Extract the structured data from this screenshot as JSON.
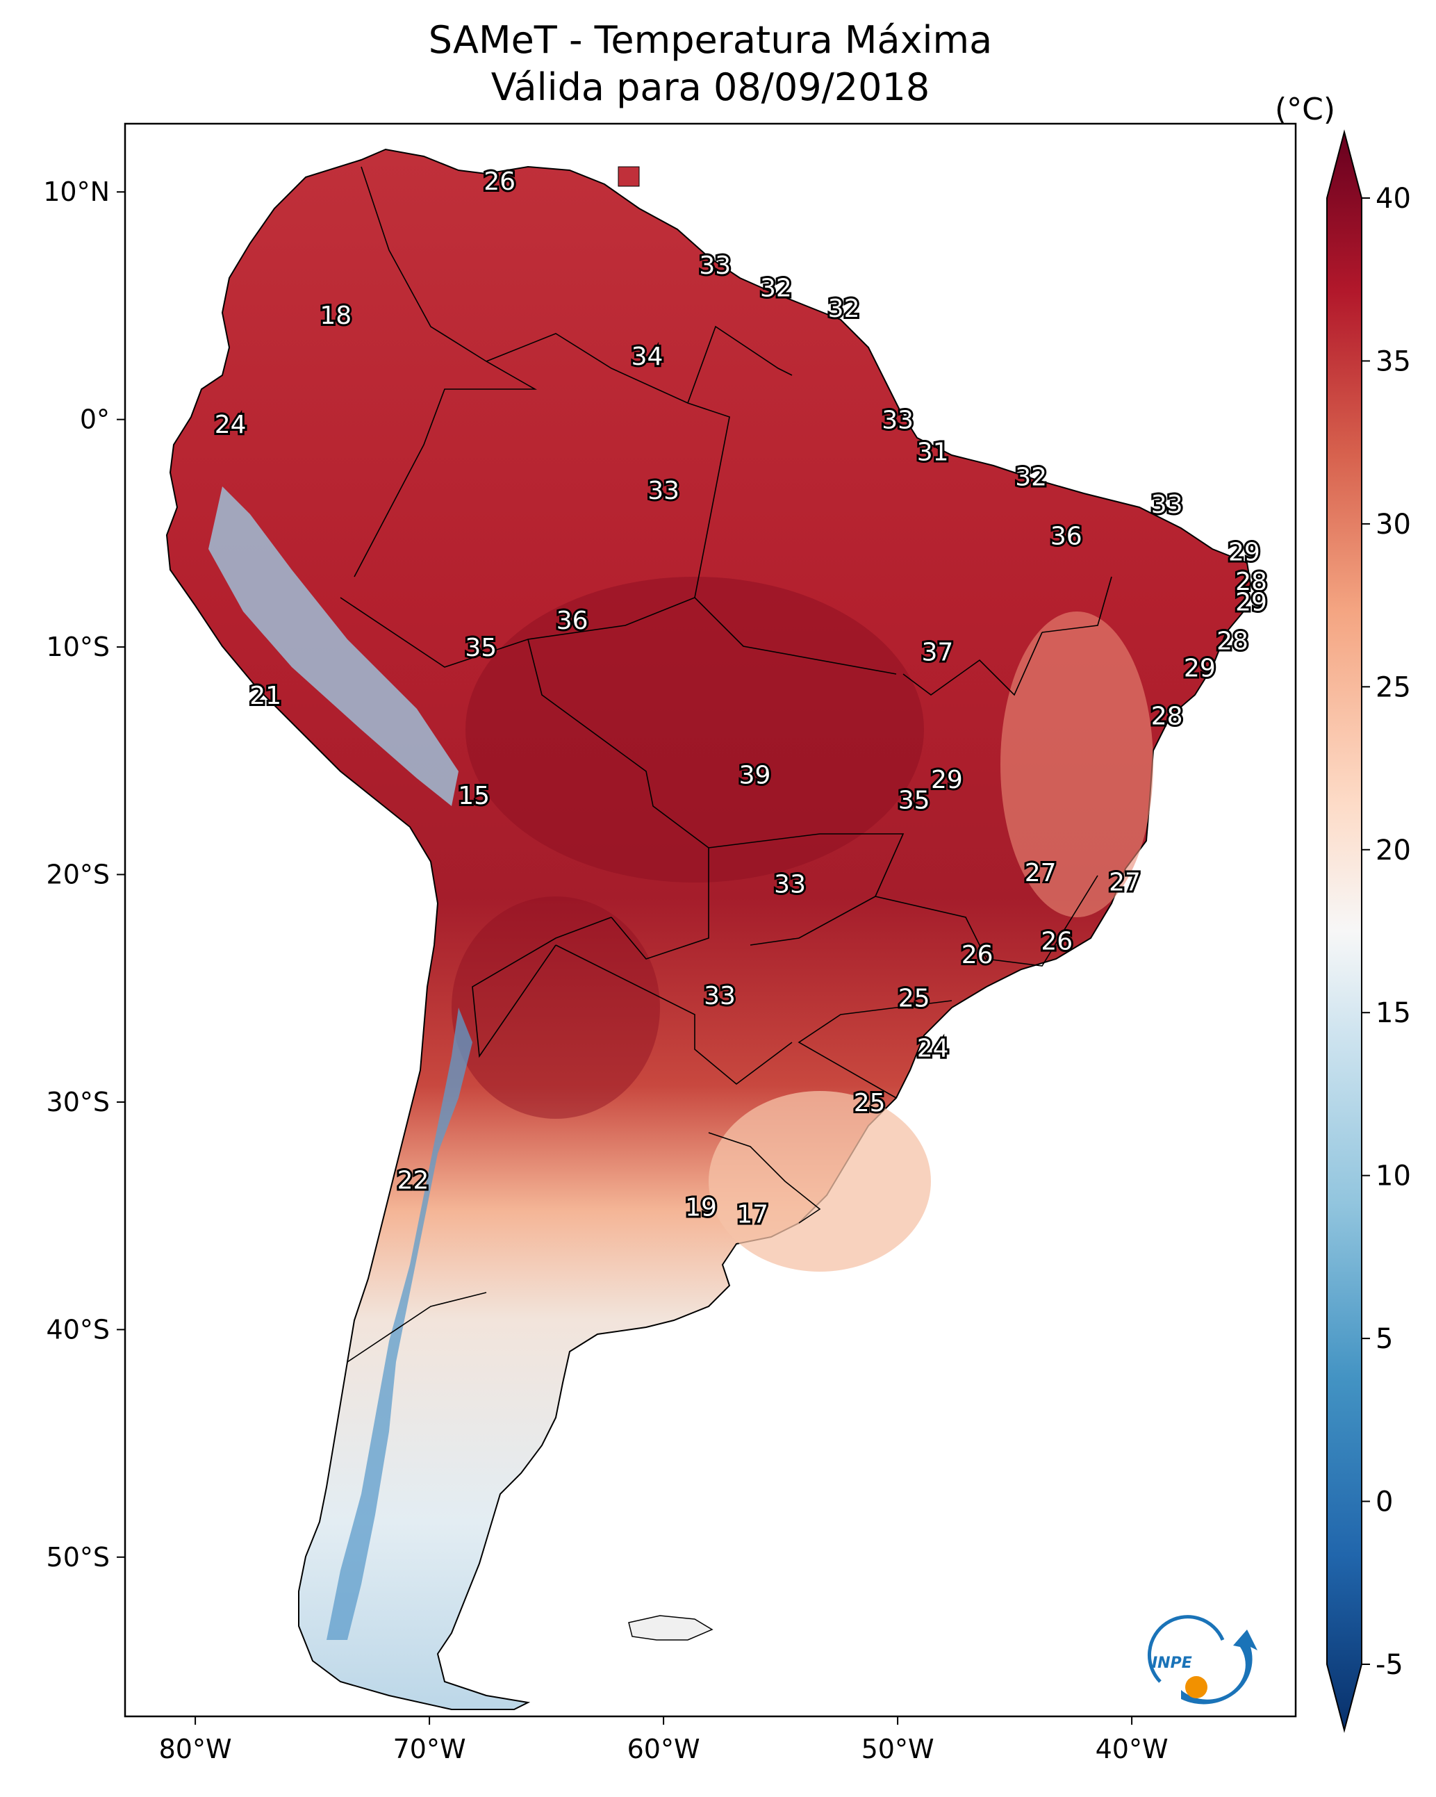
{
  "title": "SAMeT - Temperatura Máxima",
  "subtitle": "Válida para 08/09/2018",
  "colorbar": {
    "unit": "(°C)",
    "ticks": [
      "-5",
      "0",
      "5",
      "10",
      "15",
      "20",
      "25",
      "30",
      "35",
      "40"
    ],
    "range": [
      -5,
      40
    ],
    "colors": [
      "#08306b",
      "#2166ac",
      "#4393c3",
      "#92c5de",
      "#d1e5f0",
      "#f7f7f7",
      "#fddbc7",
      "#f4a582",
      "#d6604d",
      "#b2182b",
      "#67001f"
    ]
  },
  "axes": {
    "lon_ticks": [
      "80°W",
      "70°W",
      "60°W",
      "50°W",
      "40°W"
    ],
    "lat_ticks": [
      "10°N",
      "0°",
      "10°S",
      "20°S",
      "30°S",
      "40°S",
      "50°S"
    ],
    "lon_range": [
      -83,
      -33
    ],
    "lat_range": [
      -57,
      13
    ]
  },
  "logo_text": "INPE",
  "stations": [
    {
      "t": "26",
      "lon": -67.0,
      "lat": 10.5
    },
    {
      "t": "18",
      "lon": -74.0,
      "lat": 4.6
    },
    {
      "t": "33",
      "lon": -57.8,
      "lat": 6.8
    },
    {
      "t": "32",
      "lon": -55.2,
      "lat": 5.8
    },
    {
      "t": "32",
      "lon": -52.3,
      "lat": 4.9
    },
    {
      "t": "34",
      "lon": -60.7,
      "lat": 2.8
    },
    {
      "t": "24",
      "lon": -78.5,
      "lat": -0.2
    },
    {
      "t": "33",
      "lon": -50.0,
      "lat": 0.0
    },
    {
      "t": "31",
      "lon": -48.5,
      "lat": -1.4
    },
    {
      "t": "32",
      "lon": -44.3,
      "lat": -2.5
    },
    {
      "t": "33",
      "lon": -60.0,
      "lat": -3.1
    },
    {
      "t": "33",
      "lon": -38.5,
      "lat": -3.7
    },
    {
      "t": "36",
      "lon": -42.8,
      "lat": -5.1
    },
    {
      "t": "29",
      "lon": -35.2,
      "lat": -5.8
    },
    {
      "t": "28",
      "lon": -34.9,
      "lat": -7.1
    },
    {
      "t": "29",
      "lon": -34.9,
      "lat": -8.0
    },
    {
      "t": "36",
      "lon": -63.9,
      "lat": -8.8
    },
    {
      "t": "35",
      "lon": -67.8,
      "lat": -10.0
    },
    {
      "t": "37",
      "lon": -48.3,
      "lat": -10.2
    },
    {
      "t": "28",
      "lon": -35.7,
      "lat": -9.7
    },
    {
      "t": "29",
      "lon": -37.1,
      "lat": -10.9
    },
    {
      "t": "21",
      "lon": -77.0,
      "lat": -12.1
    },
    {
      "t": "28",
      "lon": -38.5,
      "lat": -13.0
    },
    {
      "t": "39",
      "lon": -56.1,
      "lat": -15.6
    },
    {
      "t": "29",
      "lon": -47.9,
      "lat": -15.8
    },
    {
      "t": "35",
      "lon": -49.3,
      "lat": -16.7
    },
    {
      "t": "15",
      "lon": -68.1,
      "lat": -16.5
    },
    {
      "t": "27",
      "lon": -43.9,
      "lat": -19.9
    },
    {
      "t": "27",
      "lon": -40.3,
      "lat": -20.3
    },
    {
      "t": "33",
      "lon": -54.6,
      "lat": -20.4
    },
    {
      "t": "26",
      "lon": -46.6,
      "lat": -23.5
    },
    {
      "t": "26",
      "lon": -43.2,
      "lat": -22.9
    },
    {
      "t": "33",
      "lon": -57.6,
      "lat": -25.3
    },
    {
      "t": "25",
      "lon": -49.3,
      "lat": -25.4
    },
    {
      "t": "24",
      "lon": -48.5,
      "lat": -27.6
    },
    {
      "t": "25",
      "lon": -51.2,
      "lat": -30.0
    },
    {
      "t": "22",
      "lon": -70.7,
      "lat": -33.4
    },
    {
      "t": "19",
      "lon": -58.4,
      "lat": -34.6
    },
    {
      "t": "17",
      "lon": -56.2,
      "lat": -34.9
    }
  ]
}
